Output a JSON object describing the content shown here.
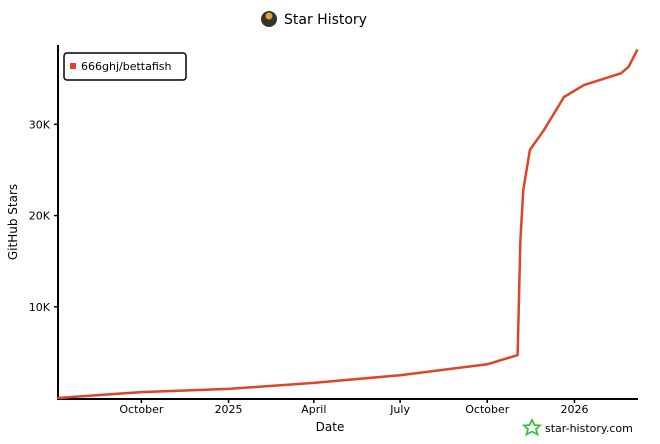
{
  "chart_data": {
    "type": "line",
    "title": "Star History",
    "xlabel": "Date",
    "ylabel": "GitHub Stars",
    "xlim": [
      "2024-07-05",
      "2026-03-08"
    ],
    "ylim": [
      0,
      38700
    ],
    "x_ticks": [
      {
        "label": "October",
        "date": "2024-10-01"
      },
      {
        "label": "2025",
        "date": "2025-01-01"
      },
      {
        "label": "April",
        "date": "2025-04-01"
      },
      {
        "label": "July",
        "date": "2025-07-01"
      },
      {
        "label": "October",
        "date": "2025-10-01"
      },
      {
        "label": "2026",
        "date": "2026-01-01"
      }
    ],
    "y_ticks": [
      {
        "label": "10K",
        "value": 10000
      },
      {
        "label": "20K",
        "value": 20000
      },
      {
        "label": "30K",
        "value": 30000
      }
    ],
    "grid": false,
    "legend_position": "top-left",
    "series": [
      {
        "name": "666ghj/bettafish",
        "color": "#dd4528",
        "points": [
          [
            "2024-07-05",
            0
          ],
          [
            "2024-10-01",
            650
          ],
          [
            "2025-01-01",
            1000
          ],
          [
            "2025-04-01",
            1650
          ],
          [
            "2025-07-01",
            2500
          ],
          [
            "2025-10-01",
            3700
          ],
          [
            "2025-11-02",
            4700
          ],
          [
            "2025-11-05",
            17300
          ],
          [
            "2025-11-08",
            22800
          ],
          [
            "2025-11-15",
            27200
          ],
          [
            "2025-11-30",
            29400
          ],
          [
            "2025-12-21",
            33000
          ],
          [
            "2026-01-11",
            34300
          ],
          [
            "2026-02-19",
            35600
          ],
          [
            "2026-02-27",
            36300
          ],
          [
            "2026-03-08",
            38100
          ]
        ]
      }
    ]
  },
  "watermark": {
    "text": "star-history.com",
    "icon": "star-icon",
    "icon_color": "#3fbf3f"
  },
  "title_icon": "avatar-icon"
}
